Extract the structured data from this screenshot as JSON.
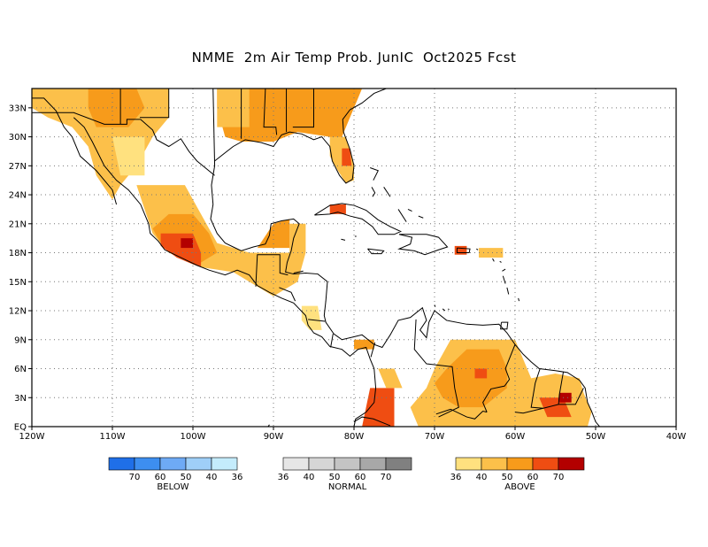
{
  "title": "NMME  2m Air Temp Prob. JunIC  Oct2025 Fcst",
  "map": {
    "lon_range": [
      -120,
      -40
    ],
    "lat_range": [
      0,
      35
    ],
    "grid": "dotted",
    "lon_ticks": [
      "120W",
      "110W",
      "100W",
      "90W",
      "80W",
      "70W",
      "60W",
      "50W",
      "40W"
    ],
    "lat_ticks": [
      "EQ",
      "3N",
      "6N",
      "9N",
      "12N",
      "15N",
      "18N",
      "21N",
      "24N",
      "27N",
      "30N",
      "33N"
    ]
  },
  "legends": [
    {
      "label": "BELOW",
      "colors": [
        "#1f6fe8",
        "#3d8ef0",
        "#6eaaf5",
        "#9fcff8",
        "#c4ecfc"
      ],
      "ticks": [
        "70",
        "60",
        "50",
        "40",
        "36"
      ]
    },
    {
      "label": "NORMAL",
      "colors": [
        "#e6e6e6",
        "#d6d6d6",
        "#c4c4c4",
        "#a8a8a8",
        "#808080"
      ],
      "ticks": [
        "36",
        "40",
        "50",
        "60",
        "70"
      ]
    },
    {
      "label": "ABOVE",
      "colors": [
        "#ffe17f",
        "#fcc04a",
        "#f79b1b",
        "#ef4d12",
        "#b30000"
      ],
      "ticks": [
        "36",
        "40",
        "50",
        "60",
        "70"
      ]
    }
  ],
  "anomaly_regions": [
    {
      "name": "SW United States",
      "category": "above",
      "level": 50
    },
    {
      "name": "Northern Mexico",
      "category": "above",
      "level": 40
    },
    {
      "name": "Southwest Mexico",
      "category": "above",
      "level": 60
    },
    {
      "name": "Yucatan / Central America",
      "category": "above",
      "level": 40
    },
    {
      "name": "SE United States",
      "category": "above",
      "level": 50
    },
    {
      "name": "Florida",
      "category": "above",
      "level": 60
    },
    {
      "name": "Cuba",
      "category": "above",
      "level": 60
    },
    {
      "name": "Puerto Rico",
      "category": "above",
      "level": 60
    },
    {
      "name": "NW South America",
      "category": "above",
      "level": 60
    },
    {
      "name": "Venezuela / Guiana",
      "category": "above",
      "level": 50
    },
    {
      "name": "French Guiana",
      "category": "above",
      "level": 60
    }
  ]
}
